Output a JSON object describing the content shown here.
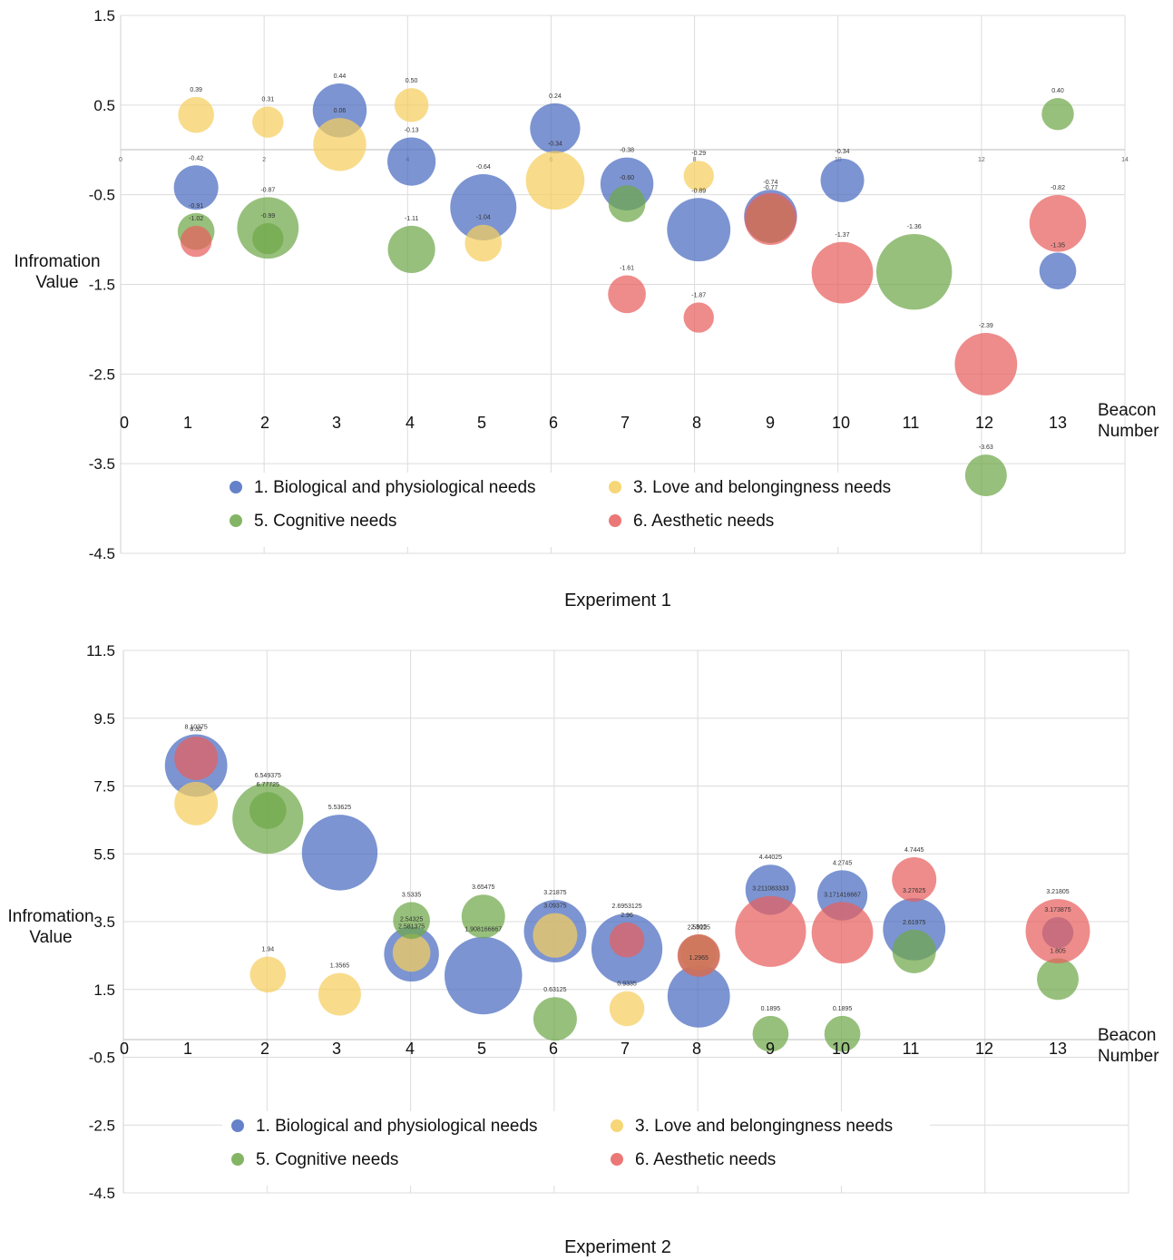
{
  "charts": [
    {
      "type": "bubble",
      "caption": "Experiment 1",
      "ylabel": [
        "Infromation",
        "Value"
      ],
      "xlabel": [
        "Beacon",
        "Number"
      ],
      "ylim": [
        -4.5,
        1.5
      ],
      "yticks": [
        "1.5",
        "0.5",
        "-0.5",
        "-1.5",
        "-2.5",
        "-3.5",
        "-4.5"
      ],
      "xticks_beacon": [
        "0",
        "1",
        "2",
        "3",
        "4",
        "5",
        "6",
        "7",
        "8",
        "9",
        "10",
        "11",
        "12",
        "13"
      ],
      "xticks_small": [
        "0",
        "2",
        "4",
        "6",
        "8",
        "10",
        "12",
        "14"
      ],
      "legend": [
        "1. Biological and physiological needs",
        "3. Love and belongingness needs",
        "5. Cognitive needs",
        "6. Aesthetic needs"
      ],
      "series": [
        {
          "name": "1. Biological and physiological needs",
          "color": "#4a6bbf",
          "points": [
            {
              "x": 1,
              "y": -0.42,
              "s": 0.47,
              "label": "-0.42"
            },
            {
              "x": 3,
              "y": 0.44,
              "s": 0.57,
              "label": "0.44"
            },
            {
              "x": 4,
              "y": -0.13,
              "s": 0.51,
              "label": "-0.13"
            },
            {
              "x": 5,
              "y": -0.64,
              "s": 0.7,
              "label": "-0.64"
            },
            {
              "x": 6,
              "y": 0.24,
              "s": 0.53,
              "label": "0.24"
            },
            {
              "x": 7,
              "y": -0.38,
              "s": 0.56,
              "label": "-0.38"
            },
            {
              "x": 8,
              "y": -0.89,
              "s": 0.67,
              "label": "-0.89"
            },
            {
              "x": 9,
              "y": -0.74,
              "s": 0.56,
              "label": "-0.74"
            },
            {
              "x": 10,
              "y": -0.34,
              "s": 0.46,
              "label": "-0.34"
            },
            {
              "x": 13,
              "y": -1.35,
              "s": 0.39,
              "label": "-1.35"
            }
          ]
        },
        {
          "name": "3. Love and belongingness needs",
          "color": "#f5cf5e",
          "points": [
            {
              "x": 1,
              "y": 0.39,
              "s": 0.38,
              "label": "0.39"
            },
            {
              "x": 2,
              "y": 0.31,
              "s": 0.33,
              "label": "0.31"
            },
            {
              "x": 3,
              "y": 0.06,
              "s": 0.56,
              "label": "0.06"
            },
            {
              "x": 4,
              "y": 0.5,
              "s": 0.36,
              "label": "0.50"
            },
            {
              "x": 5,
              "y": -1.04,
              "s": 0.39,
              "label": "-1.04"
            },
            {
              "x": 6,
              "y": -0.34,
              "s": 0.62,
              "label": "-0.34"
            },
            {
              "x": 8,
              "y": -0.29,
              "s": 0.32,
              "label": "-0.29"
            }
          ]
        },
        {
          "name": "5. Cognitive needs",
          "color": "#6fa84a",
          "points": [
            {
              "x": 1,
              "y": -0.91,
              "s": 0.39,
              "label": "-0.91"
            },
            {
              "x": 2,
              "y": -0.87,
              "s": 0.65,
              "label": "-0.87"
            },
            {
              "x": 2,
              "y": -0.99,
              "s": 0.33,
              "label": "-0.99"
            },
            {
              "x": 4,
              "y": -1.11,
              "s": 0.5,
              "label": "-1.11"
            },
            {
              "x": 7,
              "y": -0.6,
              "s": 0.39,
              "label": "-0.60"
            },
            {
              "x": 9,
              "y": -0.77,
              "s": 0.51,
              "label": "-0.77"
            },
            {
              "x": 11,
              "y": -1.36,
              "s": 0.8,
              "label": "-1.36"
            },
            {
              "x": 12,
              "y": -3.63,
              "s": 0.44,
              "label": "-3.63"
            },
            {
              "x": 13,
              "y": 0.4,
              "s": 0.34,
              "label": "0.40"
            }
          ]
        },
        {
          "name": "6. Aesthetic needs",
          "color": "#e8605e",
          "points": [
            {
              "x": 1,
              "y": -1.02,
              "s": 0.33,
              "label": "-1.02"
            },
            {
              "x": 7,
              "y": -1.61,
              "s": 0.4,
              "label": "-1.61"
            },
            {
              "x": 8,
              "y": -1.87,
              "s": 0.32,
              "label": "-1.87"
            },
            {
              "x": 9,
              "y": -0.77,
              "s": 0.55,
              "label": ""
            },
            {
              "x": 10,
              "y": -1.37,
              "s": 0.65,
              "label": "-1.37"
            },
            {
              "x": 12,
              "y": -2.39,
              "s": 0.66,
              "label": "-2.39"
            },
            {
              "x": 13,
              "y": -0.82,
              "s": 0.6,
              "label": "-0.82"
            }
          ]
        }
      ]
    },
    {
      "type": "bubble",
      "caption": "Experiment 2",
      "ylabel": [
        "Infromation",
        "Value"
      ],
      "xlabel": [
        "Beacon",
        "Number"
      ],
      "ylim": [
        -4.5,
        11.5
      ],
      "yticks": [
        "11.5",
        "9.5",
        "7.5",
        "5.5",
        "3.5",
        "1.5",
        "-0.5",
        "-2.5",
        "-4.5"
      ],
      "xticks_beacon": [
        "0",
        "1",
        "2",
        "3",
        "4",
        "5",
        "6",
        "7",
        "8",
        "9",
        "10",
        "11",
        "12",
        "13"
      ],
      "legend": [
        "1. Biological and physiological needs",
        "3. Love and belongingness needs",
        "5. Cognitive needs",
        "6. Aesthetic needs"
      ],
      "series": [
        {
          "name": "1. Biological and physiological needs",
          "color": "#4a6bbf",
          "points": [
            {
              "x": 1,
              "y": 8.10375,
              "s": 0.66,
              "label": "8.10375"
            },
            {
              "x": 3,
              "y": 5.53625,
              "s": 0.8,
              "label": "5.53625"
            },
            {
              "x": 4,
              "y": 2.54325,
              "s": 0.58,
              "label": "2.54325"
            },
            {
              "x": 5,
              "y": 1.908166667,
              "s": 0.82,
              "label": "1.908166667"
            },
            {
              "x": 6,
              "y": 3.21875,
              "s": 0.66,
              "label": "3.21875"
            },
            {
              "x": 7,
              "y": 2.6953125,
              "s": 0.75,
              "label": "2.6953125"
            },
            {
              "x": 8,
              "y": 1.2965,
              "s": 0.66,
              "label": "1.2965"
            },
            {
              "x": 9,
              "y": 4.44025,
              "s": 0.53,
              "label": "4.44025"
            },
            {
              "x": 10,
              "y": 4.2745,
              "s": 0.53,
              "label": "4.2745"
            },
            {
              "x": 11,
              "y": 3.27625,
              "s": 0.66,
              "label": "3.27625"
            },
            {
              "x": 13,
              "y": 3.173875,
              "s": 0.33,
              "label": "3.173875"
            }
          ]
        },
        {
          "name": "3. Love and belongingness needs",
          "color": "#f5cf5e",
          "points": [
            {
              "x": 1,
              "y": 6.983,
              "s": 0.46,
              "label": ""
            },
            {
              "x": 2,
              "y": 1.94,
              "s": 0.38,
              "label": "1.94"
            },
            {
              "x": 3,
              "y": 1.3565,
              "s": 0.45,
              "label": "1.3565"
            },
            {
              "x": 4,
              "y": 2.581375,
              "s": 0.4,
              "label": "2.581375"
            },
            {
              "x": 6,
              "y": 3.09375,
              "s": 0.47,
              "label": "3.09375"
            },
            {
              "x": 7,
              "y": 0.9335,
              "s": 0.37,
              "label": "0.9335"
            },
            {
              "x": 8,
              "y": 2.58125,
              "s": 0.38,
              "label": "2.58125"
            }
          ]
        },
        {
          "name": "5. Cognitive needs",
          "color": "#6fa84a",
          "points": [
            {
              "x": 2,
              "y": 6.549375,
              "s": 0.75,
              "label": "6.549375"
            },
            {
              "x": 2,
              "y": 6.77725,
              "s": 0.39,
              "label": "6.77725"
            },
            {
              "x": 4,
              "y": 3.5335,
              "s": 0.39,
              "label": "3.5335"
            },
            {
              "x": 5,
              "y": 3.65475,
              "s": 0.46,
              "label": "3.65475"
            },
            {
              "x": 6,
              "y": 0.63125,
              "s": 0.46,
              "label": "0.63125"
            },
            {
              "x": 8,
              "y": 2.505,
              "s": 0.44,
              "label": "2.505"
            },
            {
              "x": 9,
              "y": 0.1895,
              "s": 0.38,
              "label": "0.1895"
            },
            {
              "x": 10,
              "y": 0.1895,
              "s": 0.38,
              "label": "0.1895"
            },
            {
              "x": 11,
              "y": 2.61975,
              "s": 0.46,
              "label": "2.61975"
            },
            {
              "x": 13,
              "y": 1.805,
              "s": 0.44,
              "label": "1.805"
            }
          ]
        },
        {
          "name": "6. Aesthetic needs",
          "color": "#e8605e",
          "points": [
            {
              "x": 1,
              "y": 8.32,
              "s": 0.46,
              "label": "8.32"
            },
            {
              "x": 7,
              "y": 2.96,
              "s": 0.37,
              "label": "2.96"
            },
            {
              "x": 8,
              "y": 2.5,
              "s": 0.45,
              "label": ""
            },
            {
              "x": 9,
              "y": 3.211083333,
              "s": 0.75,
              "label": "3.211083333"
            },
            {
              "x": 10,
              "y": 3.171416667,
              "s": 0.65,
              "label": "3.171416667"
            },
            {
              "x": 11,
              "y": 4.7445,
              "s": 0.47,
              "label": "4.7445"
            },
            {
              "x": 13,
              "y": 3.21805,
              "s": 0.68,
              "label": "3.21805"
            }
          ]
        }
      ]
    }
  ],
  "chart_data": [
    {
      "type": "scatter",
      "title": "Experiment 1",
      "xlabel": "Beacon Number",
      "ylabel": "Infromation Value",
      "ylim": [
        -4.5,
        1.5
      ],
      "xlim": [
        0,
        14
      ],
      "series_names": [
        "1. Biological and physiological needs",
        "3. Love and belongingness needs",
        "5. Cognitive needs",
        "6. Aesthetic needs"
      ]
    },
    {
      "type": "scatter",
      "title": "Experiment 2",
      "xlabel": "Beacon Number",
      "ylabel": "Infromation Value",
      "ylim": [
        -4.5,
        11.5
      ],
      "xlim": [
        0,
        14
      ],
      "series_names": [
        "1. Biological and physiological needs",
        "3. Love and belongingness needs",
        "5. Cognitive needs",
        "6. Aesthetic needs"
      ]
    }
  ]
}
